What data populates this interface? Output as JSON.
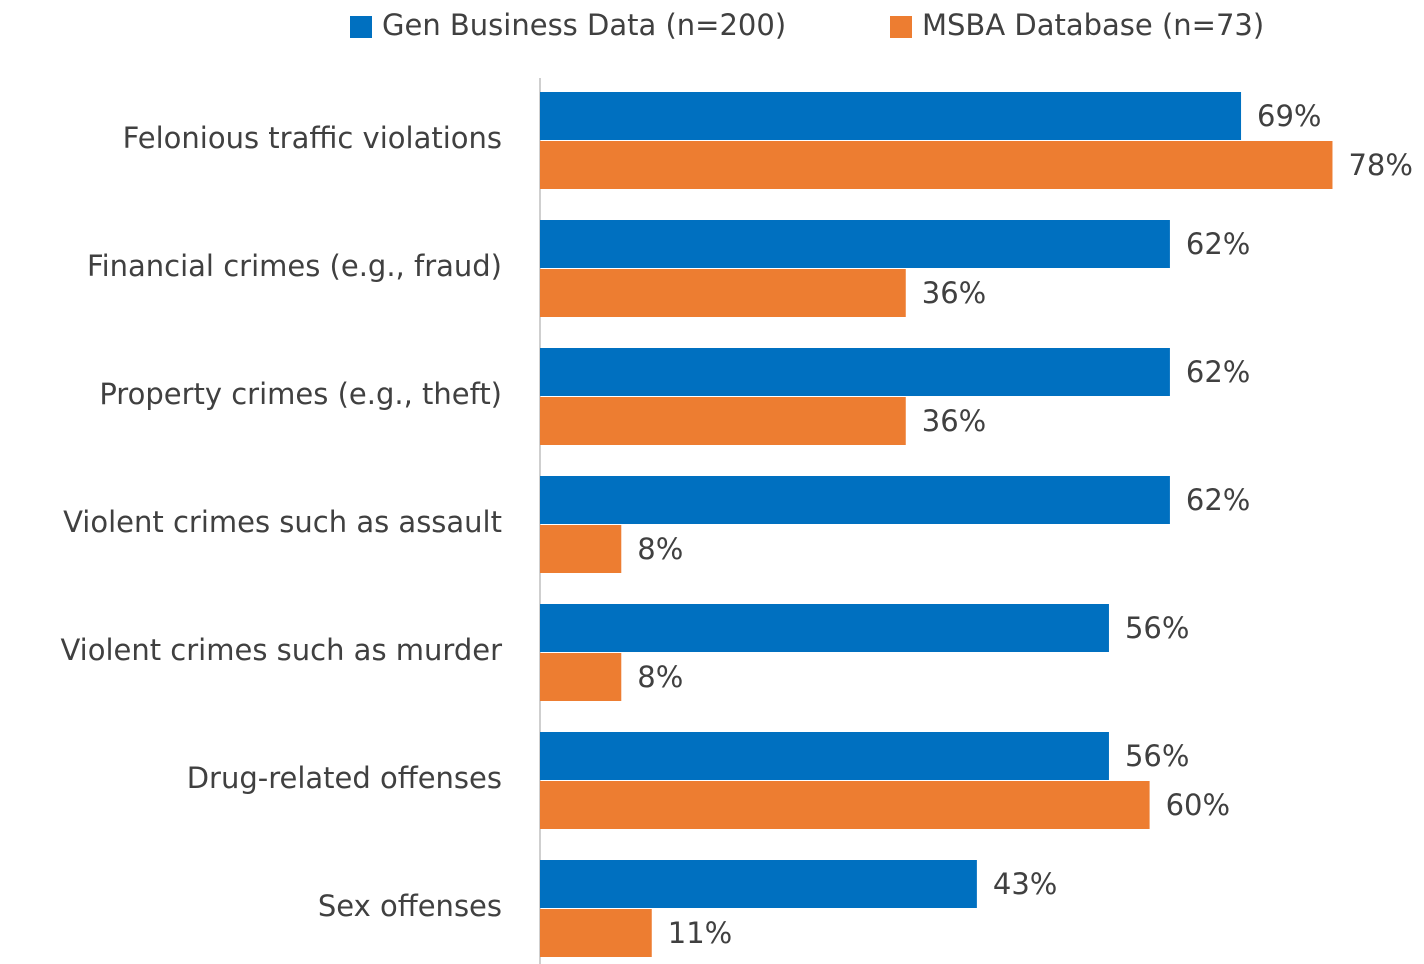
{
  "chart_data": {
    "type": "bar",
    "orientation": "horizontal",
    "categories": [
      "Felonious traffic violations",
      "Financial crimes (e.g., fraud)",
      "Property crimes (e.g., theft)",
      "Violent crimes such as assault",
      "Violent crimes such as murder",
      "Drug-related offenses",
      "Sex offenses"
    ],
    "series": [
      {
        "name": "Gen Business Data (n=200)",
        "color": "#0070c0",
        "values": [
          69,
          62,
          62,
          62,
          56,
          56,
          43
        ],
        "value_labels": [
          "69%",
          "62%",
          "62%",
          "62%",
          "56%",
          "56%",
          "43%"
        ]
      },
      {
        "name": "MSBA Database (n=73)",
        "color": "#ed7d31",
        "values": [
          78,
          36,
          36,
          8,
          8,
          60,
          11
        ],
        "value_labels": [
          "78%",
          "36%",
          "36%",
          "8%",
          "8%",
          "60%",
          "11%"
        ]
      }
    ],
    "legend": "top"
  }
}
